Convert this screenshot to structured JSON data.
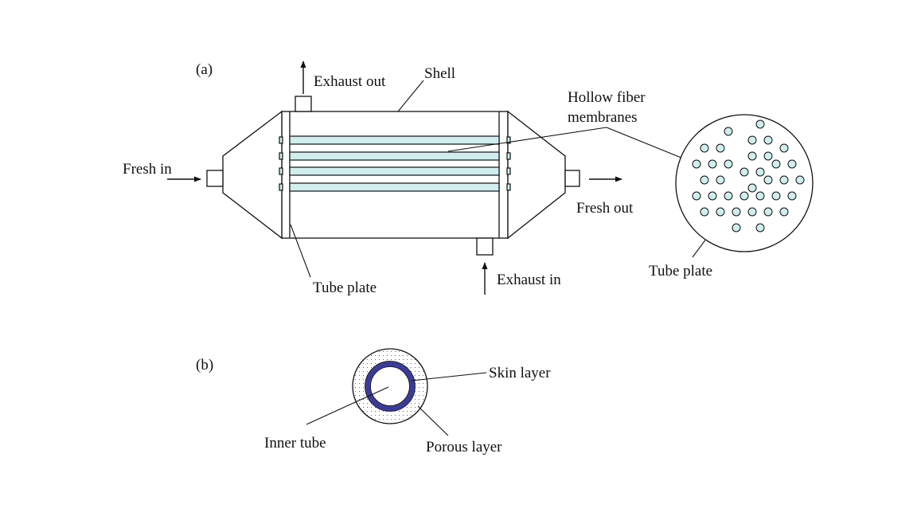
{
  "panel_a": {
    "label": "(a)",
    "exhaust_out": "Exhaust out",
    "shell": "Shell",
    "hollow_fiber_1": "Hollow fiber",
    "hollow_fiber_2": "membranes",
    "fresh_in": "Fresh in",
    "fresh_out": "Fresh out",
    "tube_plate_left": "Tube plate",
    "exhaust_in": "Exhaust in",
    "tube_plate_right": "Tube plate"
  },
  "panel_b": {
    "label": "(b)",
    "skin_layer": "Skin layer",
    "inner_tube": "Inner tube",
    "porous_layer": "Porous layer"
  },
  "colors": {
    "fiber_fill": "#cfeeed",
    "skin_layer": "#3b3b9a",
    "line": "#111111"
  }
}
